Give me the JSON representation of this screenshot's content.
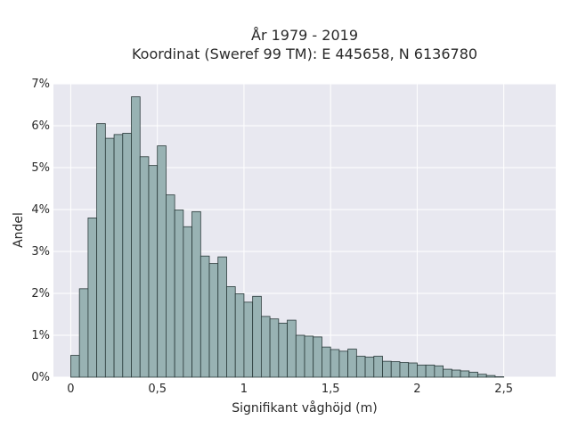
{
  "chart_data": {
    "type": "bar",
    "title_line1": "År 1979 - 2019",
    "title_line2": "Koordinat (Sweref 99 TM): E 445658, N 6136780",
    "xlabel": "Signifikant våghöjd (m)",
    "ylabel": "Andel",
    "xlim": [
      -0.1,
      2.8
    ],
    "ylim": [
      0,
      0.07
    ],
    "bin_width": 0.05,
    "bin_start": 0.0,
    "grid": true,
    "x_ticks": [
      {
        "value": 0,
        "label": "0"
      },
      {
        "value": 0.5,
        "label": "0,5"
      },
      {
        "value": 1,
        "label": "1"
      },
      {
        "value": 1.5,
        "label": "1,5"
      },
      {
        "value": 2,
        "label": "2"
      },
      {
        "value": 2.5,
        "label": "2,5"
      }
    ],
    "y_ticks": [
      {
        "value": 0,
        "label": "0%"
      },
      {
        "value": 0.01,
        "label": "1%"
      },
      {
        "value": 0.02,
        "label": "2%"
      },
      {
        "value": 0.03,
        "label": "3%"
      },
      {
        "value": 0.04,
        "label": "4%"
      },
      {
        "value": 0.05,
        "label": "5%"
      },
      {
        "value": 0.06,
        "label": "6%"
      },
      {
        "value": 0.07,
        "label": "7%"
      }
    ],
    "values": [
      0.0052,
      0.0211,
      0.038,
      0.0605,
      0.057,
      0.0579,
      0.0582,
      0.0669,
      0.0526,
      0.0505,
      0.0552,
      0.0435,
      0.0399,
      0.0359,
      0.0395,
      0.0289,
      0.0271,
      0.0287,
      0.0216,
      0.0199,
      0.0179,
      0.0193,
      0.0145,
      0.0139,
      0.0129,
      0.0136,
      0.01,
      0.0098,
      0.0096,
      0.0072,
      0.0066,
      0.0062,
      0.0067,
      0.005,
      0.0048,
      0.005,
      0.0038,
      0.0037,
      0.0035,
      0.0034,
      0.0029,
      0.0029,
      0.0027,
      0.0019,
      0.0017,
      0.0015,
      0.0012,
      0.0007,
      0.0004,
      0.0001
    ],
    "colors": {
      "bar_fill": "#98b2b3",
      "bar_stroke": "#2a3a3a",
      "plot_bg": "#e8e8f0",
      "grid": "#ffffff"
    }
  }
}
